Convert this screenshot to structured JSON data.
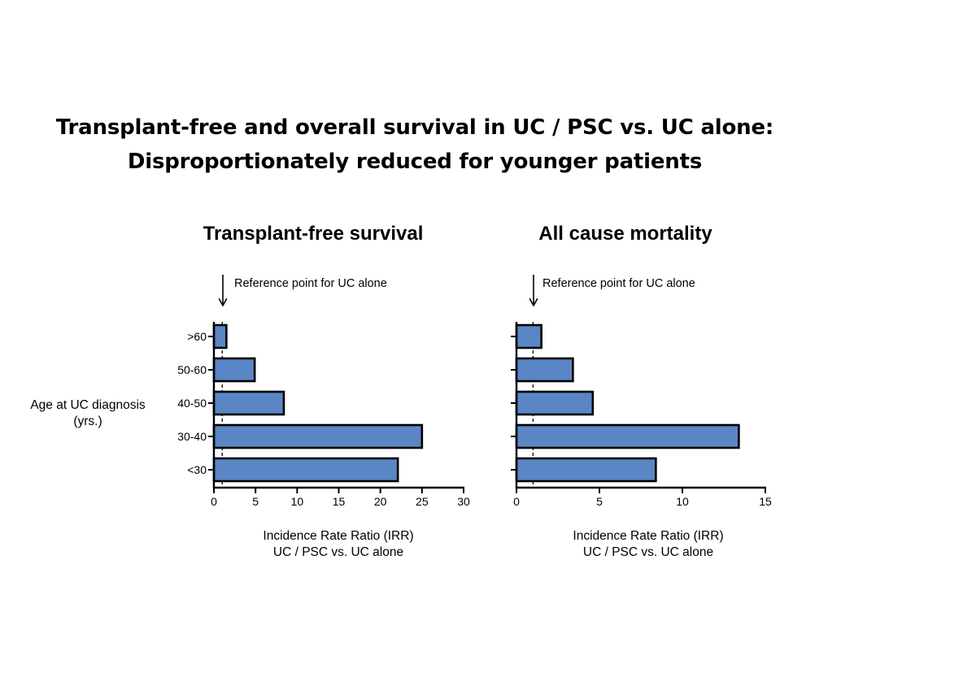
{
  "page": {
    "title_line1": "Transplant-free and overall survival in UC / PSC vs. UC alone:",
    "title_line2": "Disproportionately reduced for younger patients"
  },
  "colors": {
    "bar_fill": "#5b86c6",
    "bar_stroke": "#000000"
  },
  "chart_data": [
    {
      "type": "bar",
      "orientation": "horizontal",
      "title": "Transplant-free survival",
      "categories": [
        ">60",
        "50-60",
        "40-50",
        "30-40",
        "<30"
      ],
      "values": [
        1.5,
        4.9,
        8.4,
        25.0,
        22.1
      ],
      "xlabel_line1": "Incidence Rate Ratio (IRR)",
      "xlabel_line2": "UC / PSC vs. UC alone",
      "ylabel_line1": "Age at UC diagnosis",
      "ylabel_line2": "(yrs.)",
      "xlim": [
        0,
        30
      ],
      "xticks": [
        0,
        5,
        10,
        15,
        20,
        25,
        30
      ],
      "reference_value": 1,
      "reference_label": "Reference point for UC alone"
    },
    {
      "type": "bar",
      "orientation": "horizontal",
      "title": "All cause mortality",
      "categories": [
        ">60",
        "50-60",
        "40-50",
        "30-40",
        "<30"
      ],
      "values": [
        1.5,
        3.4,
        4.6,
        13.4,
        8.4
      ],
      "xlabel_line1": "Incidence Rate Ratio (IRR)",
      "xlabel_line2": "UC / PSC vs. UC alone",
      "xlim": [
        0,
        15
      ],
      "xticks": [
        0,
        5,
        10,
        15
      ],
      "reference_value": 1,
      "reference_label": "Reference point for UC alone"
    }
  ]
}
